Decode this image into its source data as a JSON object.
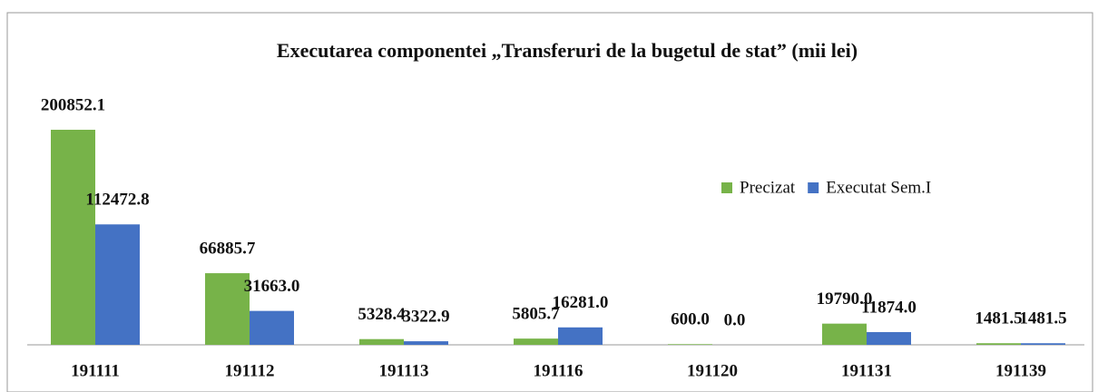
{
  "chart_data": {
    "type": "bar",
    "title": "Executarea componentei „Transferuri de la bugetul de stat”    (mii lei)",
    "categories": [
      "191111",
      "191112",
      "191113",
      "191116",
      "191120",
      "191131",
      "191139"
    ],
    "series": [
      {
        "name": "Precizat",
        "color": "#77b349",
        "values": [
          200852.1,
          66885.7,
          5328.4,
          5805.7,
          600,
          19790,
          1481.5
        ],
        "value_labels": [
          "200852.1",
          "66885.7",
          "5328.4",
          "5805.7",
          "600.0",
          "19790.0",
          "1481.5"
        ]
      },
      {
        "name": "Executat Sem.I",
        "color": "#4472c4",
        "values": [
          112472.8,
          31663,
          3322.9,
          16281,
          0,
          11874,
          1481.5
        ],
        "value_labels": [
          "112472.8",
          "31663.0",
          "3322.9",
          "16281.0",
          "0.0",
          "11874.0",
          "1481.5"
        ]
      }
    ],
    "legend": "right"
  }
}
